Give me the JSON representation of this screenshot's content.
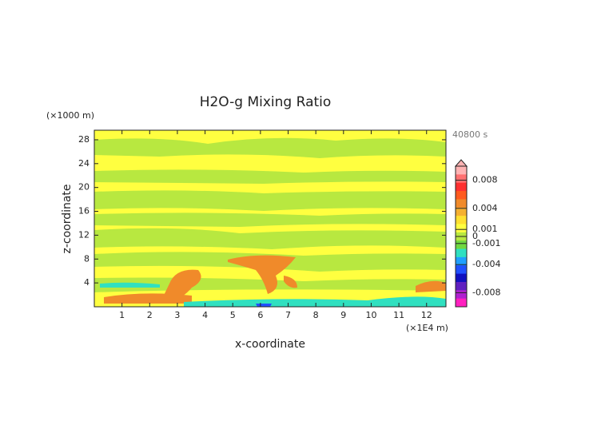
{
  "chart_data": {
    "type": "contour",
    "title": "H2O-g Mixing Ratio",
    "time_label": "40800 s",
    "xlabel": "x-coordinate",
    "ylabel": "z-coordinate",
    "x_unit": "(×1E4 m)",
    "y_unit": "(×1000 m)",
    "xlim": [
      0,
      12.7
    ],
    "xticks": [
      1,
      2,
      3,
      4,
      5,
      6,
      7,
      8,
      9,
      10,
      11,
      12
    ],
    "ylim": [
      0,
      29.6
    ],
    "yticks": [
      4,
      8,
      12,
      16,
      20,
      24,
      28
    ],
    "clim": [
      -0.01,
      0.01
    ],
    "cticks": [
      0.008,
      0.004,
      0.001,
      0,
      -0.001,
      -0.004,
      -0.008
    ],
    "colormap": [
      "#ffb3b3",
      "#ff7070",
      "#ff3030",
      "#ff5a1e",
      "#f08a2a",
      "#f5b030",
      "#ffe030",
      "#ffff40",
      "#b8e840",
      "#70d840",
      "#30e0c0",
      "#20a0ff",
      "#2050ff",
      "#1010c0",
      "#6020c0",
      "#b020d0",
      "#ff20c0"
    ]
  }
}
